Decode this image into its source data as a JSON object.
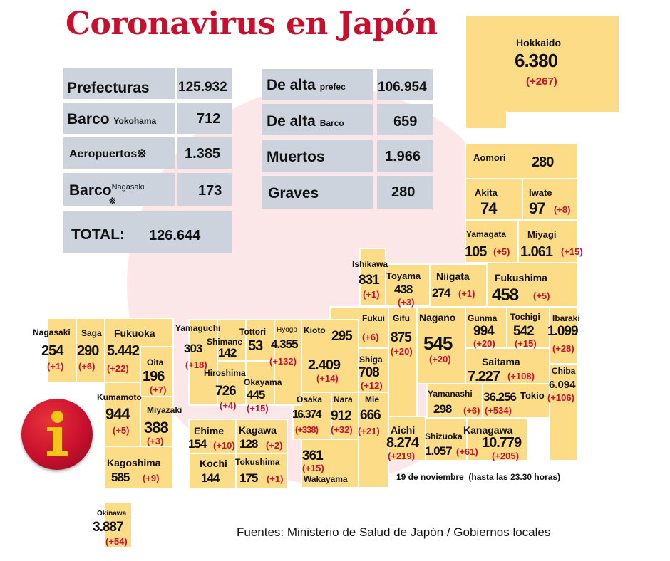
{
  "title": "Coronavirus en Japón",
  "summary": {
    "prefecturas_label": "Prefecturas",
    "prefecturas_value": "125.932",
    "barco_label": "Barco",
    "barco_sub": "Yokohama",
    "barco_value": "712",
    "aeropuertos_label": "Aeropuertos",
    "aeropuertos_mark": "※",
    "aeropuertos_value": "1.385",
    "barco2_label": "Barco",
    "barco2_mark": "※",
    "barco2_sub": "Nagasaki",
    "barco2_value": "173",
    "total_label": "TOTAL:",
    "total_value": "126.644",
    "dealta_label": "De alta",
    "dealta_sub": "prefec",
    "dealta_value": "106.954",
    "dealta_barco_label": "De alta",
    "dealta_barco_sub": "Barco",
    "dealta_barco_value": "659",
    "muertos_label": "Muertos",
    "muertos_value": "1.966",
    "graves_label": "Graves",
    "graves_value": "280"
  },
  "prefectures": {
    "hokkaido": {
      "name": "Hokkaido",
      "cases": "6.380",
      "delta": "(+267)"
    },
    "aomori": {
      "name": "Aomori",
      "cases": "280"
    },
    "akita": {
      "name": "Akita",
      "cases": "74"
    },
    "iwate": {
      "name": "Iwate",
      "cases": "97",
      "delta": "(+8)"
    },
    "yamagata": {
      "name": "Yamagata",
      "cases": "105",
      "delta": "(+5)"
    },
    "miyagi": {
      "name": "Miyagi",
      "cases": "1.061",
      "delta": "(+15)"
    },
    "ishikawa": {
      "name": "Ishikawa",
      "cases": "831",
      "delta": "(+1)"
    },
    "toyama": {
      "name": "Toyama",
      "cases": "438",
      "delta": "(+3)"
    },
    "niigata": {
      "name": "Niigata",
      "cases": "274",
      "delta": "(+1)"
    },
    "fukushima": {
      "name": "Fukushima",
      "cases": "458",
      "delta": "(+5)"
    },
    "fukui": {
      "name": "Fukui",
      "cases": "295",
      "delta": "(+6)"
    },
    "gifu": {
      "name": "Gifu",
      "cases": "875",
      "delta": "(+20)"
    },
    "nagano": {
      "name": "Nagano",
      "cases": "545",
      "delta": "(+20)"
    },
    "gunma": {
      "name": "Gunma",
      "cases": "994",
      "delta": "(+20)"
    },
    "tochigi": {
      "name": "Tochigi",
      "cases": "542",
      "delta": "(+15)"
    },
    "ibaraki": {
      "name": "Ibaraki",
      "cases": "1.099",
      "delta": "(+28)"
    },
    "saitama": {
      "name": "Saitama",
      "cases": "7.227",
      "delta": "(+108)"
    },
    "chiba": {
      "name": "Chiba",
      "cases": "6.094",
      "delta": "(+106)"
    },
    "tokio": {
      "name": "Tokio",
      "cases": "36.256",
      "delta": "(+534)"
    },
    "yamanashi": {
      "name": "Yamanashi",
      "cases": "298",
      "delta": "(+6)"
    },
    "kanagawa": {
      "name": "Kanagawa",
      "cases": "10.779",
      "delta": "(+205)"
    },
    "shizuoka": {
      "name": "Shizuoka",
      "cases": "1.057",
      "delta": "(+61)"
    },
    "aichi": {
      "name": "Aichi",
      "cases": "8.274",
      "delta": "(+219)"
    },
    "mie": {
      "name": "Mie",
      "cases": "666",
      "delta": "(+21)"
    },
    "shiga": {
      "name": "Shiga",
      "cases": "708",
      "delta": "(+12)"
    },
    "kioto": {
      "name": "Kioto",
      "cases": "2.409",
      "delta": "(+14)"
    },
    "nara": {
      "name": "Nara",
      "cases": "912",
      "delta": "(+32)"
    },
    "osaka": {
      "name": "Osaka",
      "cases": "16.374",
      "delta": "(+338)"
    },
    "wakayama": {
      "name": "Wakayama",
      "cases": "361",
      "delta": "(+15)"
    },
    "hyogo": {
      "name": "Hyogo",
      "cases": "4.355",
      "delta": "(+132)"
    },
    "tottori": {
      "name": "Tottori",
      "cases": "53"
    },
    "shimane": {
      "name": "Shimane",
      "cases": "142"
    },
    "okayama": {
      "name": "Okayama",
      "cases": "445",
      "delta": "(+15)"
    },
    "hiroshima": {
      "name": "Hiroshima",
      "cases": "726",
      "delta": "(+4)"
    },
    "yamaguchi": {
      "name": "Yamaguchi",
      "cases": "303",
      "delta": "(+18)"
    },
    "ehime": {
      "name": "Ehime",
      "cases": "154",
      "delta": "(+10)"
    },
    "kagawa": {
      "name": "Kagawa",
      "cases": "128",
      "delta": "(+2)"
    },
    "kochi": {
      "name": "Kochi",
      "cases": "144"
    },
    "tokushima": {
      "name": "Tokushima",
      "cases": "175",
      "delta": "(+1)"
    },
    "nagasaki": {
      "name": "Nagasaki",
      "cases": "254",
      "delta": "(+1)"
    },
    "saga": {
      "name": "Saga",
      "cases": "290",
      "delta": "(+6)"
    },
    "fukuoka": {
      "name": "Fukuoka",
      "cases": "5.442",
      "delta": "(+22)"
    },
    "oita": {
      "name": "Oita",
      "cases": "196",
      "delta": "(+7)"
    },
    "kumamoto": {
      "name": "Kumamoto",
      "cases": "944",
      "delta": "(+5)"
    },
    "miyazaki": {
      "name": "Miyazaki",
      "cases": "388",
      "delta": "(+3)"
    },
    "kagoshima": {
      "name": "Kagoshima",
      "cases": "585",
      "delta": "(+9)"
    },
    "okinawa": {
      "name": "Okinawa",
      "cases": "3.887",
      "delta": "(+54)"
    }
  },
  "date_note": "19 de noviembre  (hasta las 23.30 horas)",
  "source": "Fuentes: Ministerio de Salud de Japón / Gobiernos locales",
  "colors": {
    "title": "#c8102e",
    "tile": "#fcdc86",
    "summary_box": "#ccd3dc",
    "delta": "#c8102e"
  },
  "icons": {
    "info": "info-icon"
  }
}
